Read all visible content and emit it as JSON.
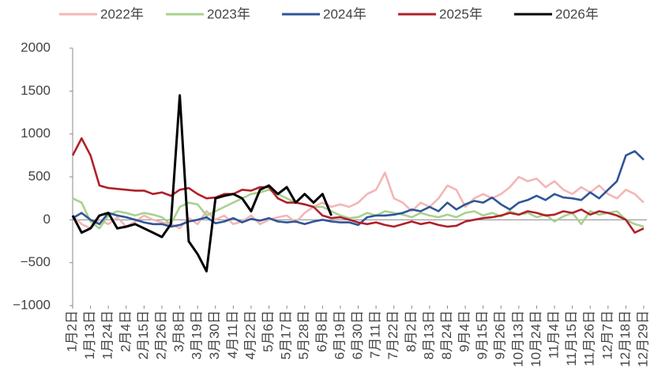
{
  "chart_data": {
    "type": "line",
    "categories": [
      "1月2日",
      null,
      "1月13日",
      null,
      "1月24日",
      null,
      "2月4日",
      null,
      "2月15日",
      null,
      "2月26日",
      null,
      "3月8日",
      null,
      "3月19日",
      null,
      "3月30日",
      null,
      "4月11日",
      null,
      "4月22日",
      null,
      "5月6日",
      null,
      "5月17日",
      null,
      "5月28日",
      null,
      "6月8日",
      null,
      "6月19日",
      null,
      "6月30日",
      null,
      "7月11日",
      null,
      "7月22日",
      null,
      "8月2日",
      null,
      "8月13日",
      null,
      "8月24日",
      null,
      "9月4日",
      null,
      "9月15日",
      null,
      "9月26日",
      null,
      "10月13日",
      null,
      "10月24日",
      null,
      "11月4日",
      null,
      "11月15日",
      null,
      "11月26日",
      null,
      "12月7日",
      null,
      "12月18日",
      null,
      "12月29日"
    ],
    "series": [
      {
        "name": "2022年",
        "color": "#f4b6b6",
        "values": [
          50,
          -50,
          -100,
          0,
          -50,
          30,
          -80,
          -20,
          50,
          0,
          -30,
          -50,
          -100,
          20,
          -50,
          100,
          0,
          50,
          -50,
          -20,
          50,
          -50,
          0,
          30,
          50,
          -30,
          80,
          150,
          200,
          150,
          180,
          150,
          200,
          300,
          350,
          550,
          250,
          200,
          100,
          200,
          150,
          250,
          400,
          350,
          150,
          250,
          300,
          250,
          300,
          380,
          500,
          450,
          480,
          380,
          450,
          350,
          300,
          380,
          320,
          400,
          300,
          250,
          350,
          300,
          200
        ]
      },
      {
        "name": "2023年",
        "color": "#a9d18e",
        "values": [
          250,
          200,
          -20,
          -100,
          50,
          100,
          80,
          50,
          80,
          60,
          30,
          -50,
          150,
          200,
          180,
          50,
          100,
          150,
          200,
          250,
          300,
          320,
          350,
          300,
          250,
          200,
          180,
          150,
          150,
          100,
          50,
          20,
          30,
          80,
          50,
          100,
          80,
          60,
          30,
          80,
          50,
          30,
          60,
          30,
          80,
          100,
          50,
          80,
          40,
          100,
          60,
          80,
          30,
          60,
          -20,
          40,
          80,
          -50,
          100,
          60,
          80,
          100,
          0,
          -50,
          -80
        ]
      },
      {
        "name": "2024年",
        "color": "#2f5597",
        "values": [
          20,
          80,
          0,
          -50,
          80,
          50,
          30,
          0,
          -30,
          -50,
          -50,
          -80,
          -60,
          -20,
          0,
          30,
          -40,
          -20,
          20,
          -30,
          10,
          -10,
          20,
          -20,
          -30,
          -20,
          -50,
          -20,
          0,
          -20,
          -30,
          -30,
          -60,
          30,
          50,
          50,
          60,
          80,
          120,
          100,
          150,
          100,
          200,
          120,
          180,
          220,
          200,
          260,
          180,
          120,
          200,
          230,
          280,
          230,
          300,
          260,
          250,
          230,
          320,
          250,
          350,
          450,
          750,
          800,
          700
        ]
      },
      {
        "name": "2025年",
        "color": "#b0202a",
        "values": [
          750,
          950,
          750,
          400,
          370,
          360,
          350,
          340,
          340,
          300,
          320,
          280,
          350,
          370,
          300,
          250,
          260,
          300,
          300,
          350,
          340,
          380,
          380,
          250,
          200,
          200,
          180,
          150,
          50,
          20,
          30,
          0,
          -30,
          -50,
          -30,
          -60,
          -80,
          -50,
          -20,
          -50,
          -30,
          -60,
          -80,
          -70,
          -20,
          0,
          20,
          30,
          50,
          80,
          60,
          100,
          80,
          50,
          60,
          100,
          80,
          120,
          60,
          100,
          80,
          50,
          0,
          -150,
          -100
        ]
      },
      {
        "name": "2026年",
        "color": "#000000",
        "values": [
          50,
          -150,
          -100,
          50,
          80,
          -100,
          -80,
          -50,
          -100,
          -150,
          -200,
          -50,
          1450,
          -250,
          -400,
          -600,
          250,
          280,
          300,
          250,
          100,
          350,
          400,
          300,
          380,
          200,
          300,
          200,
          300,
          50,
          null,
          null,
          null,
          null,
          null,
          null,
          null,
          null,
          null,
          null,
          null,
          null,
          null,
          null,
          null,
          null,
          null,
          null,
          null,
          null,
          null,
          null,
          null,
          null,
          null,
          null,
          null,
          null,
          null,
          null,
          null,
          null,
          null,
          null,
          null
        ]
      }
    ],
    "ylim": [
      -1000,
      2000
    ],
    "yticks": [
      {
        "value": -1000,
        "label": "−1000"
      },
      {
        "value": -500,
        "label": "−500"
      },
      0,
      500,
      1000,
      1500,
      2000
    ]
  }
}
